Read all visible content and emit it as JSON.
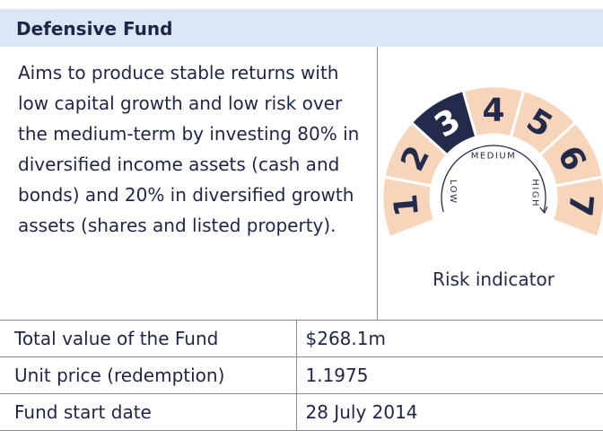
{
  "header": {
    "title": "Defensive Fund"
  },
  "description": "Aims to produce stable returns with low capital growth and low risk over the medium-term by investing 80% in diversified income assets (cash and bonds) and 20% in diversified growth assets (shares and listed property).",
  "risk_indicator": {
    "levels": [
      1,
      2,
      3,
      4,
      5,
      6,
      7
    ],
    "selected": 3,
    "labels": {
      "low": "LOW",
      "medium": "MEDIUM",
      "high": "HIGH"
    },
    "caption": "Risk indicator"
  },
  "table": {
    "rows": [
      [
        "Total value of the Fund",
        "$268.1m"
      ],
      [
        "Unit price (redemption)",
        "1.1975"
      ],
      [
        "Fund start date",
        "28 July 2014"
      ]
    ]
  }
}
